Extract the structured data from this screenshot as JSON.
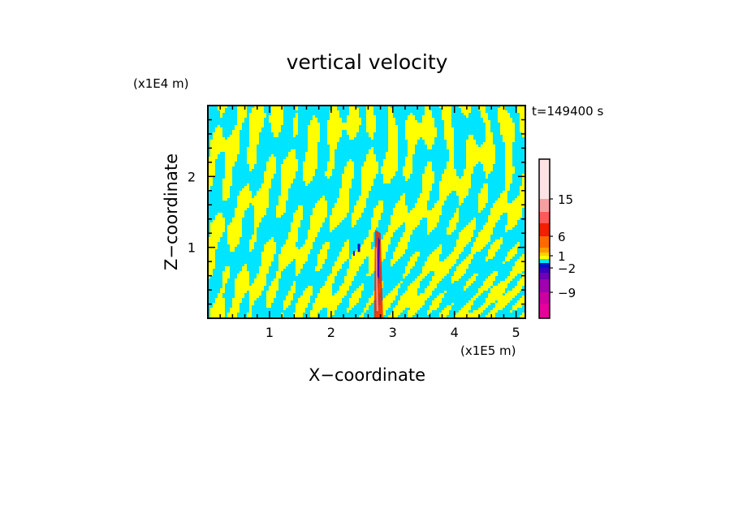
{
  "chart_data": {
    "type": "heatmap",
    "title": "vertical velocity",
    "xlabel": "X−coordinate",
    "ylabel": "Z−coordinate",
    "x_unit": "(x1E5 m)",
    "y_unit": "(x1E4 m)",
    "time_label": "t=149400 s",
    "xlim": [
      0,
      5.15
    ],
    "ylim": [
      0,
      3.0
    ],
    "x_ticks": [
      1,
      2,
      3,
      4,
      5
    ],
    "x_tick_labels": [
      "1",
      "2",
      "3",
      "4",
      "5"
    ],
    "y_ticks": [
      1,
      2
    ],
    "y_tick_labels": [
      "1",
      "2"
    ],
    "grid": false,
    "colorbar": {
      "levels": [
        {
          "lower": -15,
          "upper": -12,
          "color": "#e60099"
        },
        {
          "lower": -12,
          "upper": -9,
          "color": "#cc00a0"
        },
        {
          "lower": -9,
          "upper": -6,
          "color": "#a000b0"
        },
        {
          "lower": -6,
          "upper": -4,
          "color": "#6a00b8"
        },
        {
          "lower": -4,
          "upper": -2,
          "color": "#3a00c0"
        },
        {
          "lower": -2,
          "upper": -1,
          "color": "#0010c8"
        },
        {
          "lower": -1,
          "upper": 0,
          "color": "#00e5ff"
        },
        {
          "lower": 0,
          "upper": 1,
          "color": "#ffff00"
        },
        {
          "lower": 1,
          "upper": 2,
          "color": "#ffd000"
        },
        {
          "lower": 2,
          "upper": 4,
          "color": "#ff9a00"
        },
        {
          "lower": 4,
          "upper": 6,
          "color": "#ff6a00"
        },
        {
          "lower": 6,
          "upper": 9,
          "color": "#f02000"
        },
        {
          "lower": 9,
          "upper": 12,
          "color": "#ff5a5a"
        },
        {
          "lower": 12,
          "upper": 15,
          "color": "#f5a0a0"
        },
        {
          "lower": 15,
          "upper": 20,
          "color": "#fde3e3"
        }
      ],
      "tick_labels": [
        "15",
        "6",
        "1",
        "−2",
        "−9"
      ]
    },
    "colors": {
      "positive_field": "#ffff00",
      "negative_field": "#00e5ff"
    }
  }
}
